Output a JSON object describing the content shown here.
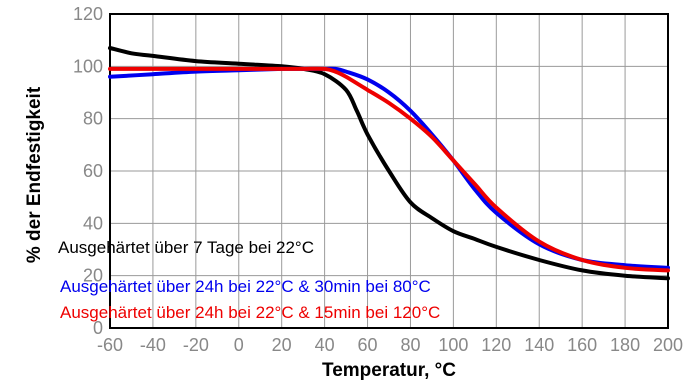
{
  "chart_data": {
    "type": "line",
    "title": "",
    "xlabel": "Temperatur, °C",
    "ylabel": "% der Endfestigkeit",
    "xlim": [
      -60,
      200
    ],
    "ylim": [
      0,
      120
    ],
    "x_ticks": [
      -60,
      -40,
      -20,
      0,
      20,
      40,
      60,
      80,
      100,
      120,
      140,
      160,
      180,
      200
    ],
    "y_ticks": [
      0,
      20,
      40,
      60,
      80,
      100,
      120
    ],
    "grid": true,
    "series": [
      {
        "name": "Ausgehärtet über 7 Tage bei 22°C",
        "color": "#000000",
        "points": [
          [
            -60,
            107
          ],
          [
            -50,
            105
          ],
          [
            -40,
            104
          ],
          [
            -20,
            102
          ],
          [
            0,
            101
          ],
          [
            20,
            100
          ],
          [
            30,
            99
          ],
          [
            40,
            97
          ],
          [
            50,
            91
          ],
          [
            55,
            83
          ],
          [
            60,
            74
          ],
          [
            70,
            60
          ],
          [
            80,
            48
          ],
          [
            90,
            42
          ],
          [
            100,
            37
          ],
          [
            110,
            34
          ],
          [
            120,
            31
          ],
          [
            140,
            26
          ],
          [
            160,
            22
          ],
          [
            180,
            20
          ],
          [
            200,
            19
          ]
        ]
      },
      {
        "name": "Ausgehärtet über 24h bei 22°C & 30min bei 80°C",
        "color": "#0000ee",
        "points": [
          [
            -60,
            96
          ],
          [
            -40,
            97
          ],
          [
            -20,
            98
          ],
          [
            0,
            98.5
          ],
          [
            20,
            99
          ],
          [
            30,
            99
          ],
          [
            40,
            99
          ],
          [
            45,
            99
          ],
          [
            50,
            98
          ],
          [
            60,
            95
          ],
          [
            70,
            90
          ],
          [
            80,
            83
          ],
          [
            90,
            74
          ],
          [
            100,
            64
          ],
          [
            110,
            53
          ],
          [
            120,
            44
          ],
          [
            140,
            32
          ],
          [
            160,
            26
          ],
          [
            180,
            24
          ],
          [
            200,
            23
          ]
        ]
      },
      {
        "name": "Ausgehärtet über 24h bei 22°C & 15min bei 120°C",
        "color": "#ee0000",
        "points": [
          [
            -60,
            99
          ],
          [
            -40,
            99
          ],
          [
            -20,
            99
          ],
          [
            0,
            99
          ],
          [
            20,
            99
          ],
          [
            30,
            99
          ],
          [
            40,
            99
          ],
          [
            45,
            98
          ],
          [
            50,
            96
          ],
          [
            60,
            91
          ],
          [
            70,
            86
          ],
          [
            80,
            80
          ],
          [
            90,
            73
          ],
          [
            100,
            64
          ],
          [
            110,
            55
          ],
          [
            120,
            46
          ],
          [
            140,
            33
          ],
          [
            160,
            26
          ],
          [
            180,
            23
          ],
          [
            200,
            22
          ]
        ]
      }
    ],
    "legend_placement": "lower-left inside plot"
  }
}
